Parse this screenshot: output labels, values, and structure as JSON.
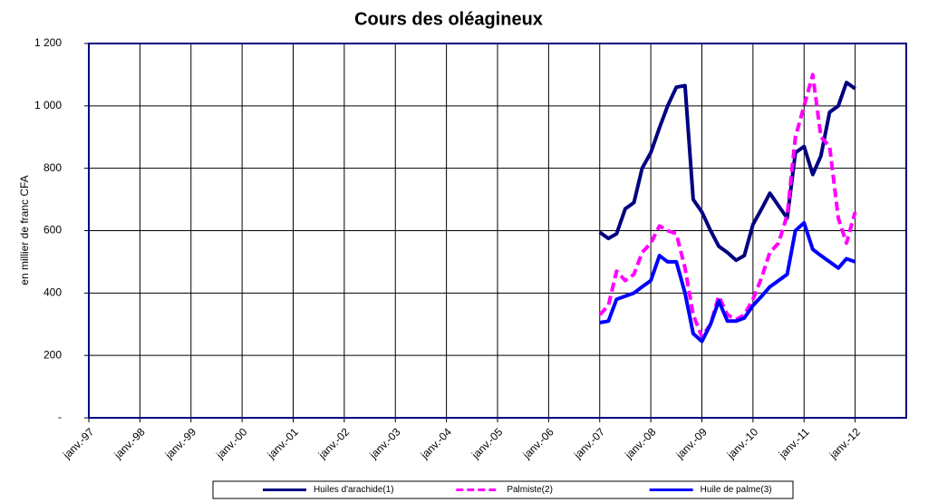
{
  "chart_data": {
    "type": "line",
    "title": "Cours des oléagineux",
    "y_label": "en millier de franc CFA",
    "x": [
      2007,
      2007.17,
      2007.33,
      2007.5,
      2007.67,
      2007.83,
      2008,
      2008.17,
      2008.33,
      2008.5,
      2008.67,
      2008.83,
      2009,
      2009.17,
      2009.33,
      2009.5,
      2009.67,
      2009.83,
      2010,
      2010.17,
      2010.33,
      2010.5,
      2010.67,
      2010.83,
      2011,
      2011.17,
      2011.33,
      2011.5,
      2011.67,
      2011.83,
      2012
    ],
    "series": [
      {
        "name": "Huiles d'arachide(1)",
        "color": "#000080",
        "dash": "solid",
        "values": [
          595,
          575,
          590,
          670,
          690,
          800,
          850,
          930,
          1000,
          1060,
          1065,
          700,
          660,
          600,
          550,
          530,
          505,
          520,
          620,
          670,
          720,
          680,
          640,
          850,
          870,
          780,
          840,
          980,
          1000,
          1075,
          1055
        ]
      },
      {
        "name": "Palmiste(2)",
        "color": "#ff00ff",
        "dash": "dashed",
        "values": [
          330,
          360,
          470,
          440,
          460,
          530,
          560,
          615,
          600,
          590,
          480,
          330,
          260,
          300,
          390,
          330,
          315,
          330,
          380,
          450,
          530,
          560,
          650,
          900,
          1000,
          1100,
          900,
          870,
          640,
          560,
          660
        ]
      },
      {
        "name": "Huile de palme(3)",
        "color": "#0000ff",
        "dash": "solid",
        "values": [
          305,
          310,
          380,
          390,
          400,
          420,
          440,
          520,
          500,
          500,
          400,
          270,
          245,
          300,
          375,
          310,
          310,
          320,
          360,
          390,
          420,
          440,
          460,
          600,
          625,
          540,
          520,
          500,
          480,
          510,
          500
        ]
      }
    ],
    "xlim": [
      1997,
      2013
    ],
    "xticks": [
      {
        "value": 1997,
        "label": "janv.-97"
      },
      {
        "value": 1998,
        "label": "janv.-98"
      },
      {
        "value": 1999,
        "label": "janv.-99"
      },
      {
        "value": 2000,
        "label": "janv.-00"
      },
      {
        "value": 2001,
        "label": "janv.-01"
      },
      {
        "value": 2002,
        "label": "janv.-02"
      },
      {
        "value": 2003,
        "label": "janv.-03"
      },
      {
        "value": 2004,
        "label": "janv.-04"
      },
      {
        "value": 2005,
        "label": "janv.-05"
      },
      {
        "value": 2006,
        "label": "janv.-06"
      },
      {
        "value": 2007,
        "label": "janv.-07"
      },
      {
        "value": 2008,
        "label": "janv.-08"
      },
      {
        "value": 2009,
        "label": "janv.-09"
      },
      {
        "value": 2010,
        "label": "janv.-10"
      },
      {
        "value": 2011,
        "label": "janv.-11"
      },
      {
        "value": 2012,
        "label": "janv.-12"
      }
    ],
    "ylim": [
      0,
      1200
    ],
    "yticks": [
      {
        "value": 0,
        "label": "-"
      },
      200,
      400,
      600,
      800,
      {
        "value": 1000,
        "label": "1 000"
      },
      {
        "value": 1200,
        "label": "1 200"
      }
    ],
    "grid": true,
    "legend": "bottom"
  }
}
